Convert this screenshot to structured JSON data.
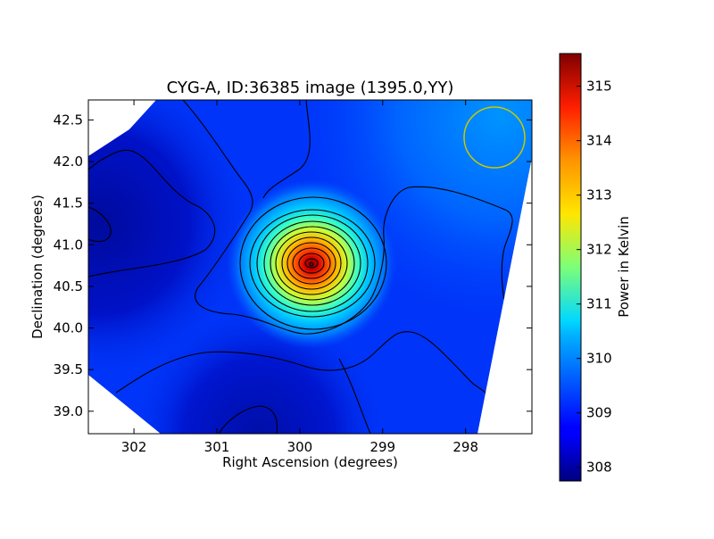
{
  "chart_data": {
    "type": "heatmap",
    "title": "CYG-A, ID:36385 image (1395.0,YY)",
    "xlabel": "Right Ascension (degrees)",
    "ylabel": "Declination (degrees)",
    "x_axis_inverted": true,
    "xlim": [
      302.55,
      297.2
    ],
    "ylim": [
      38.73,
      42.74
    ],
    "x_ticks": [
      302,
      301,
      300,
      299,
      298
    ],
    "x_tick_labels": [
      "302",
      "301",
      "300",
      "299",
      "298"
    ],
    "y_ticks": [
      39.0,
      39.5,
      40.0,
      40.5,
      41.0,
      41.5,
      42.0,
      42.5
    ],
    "y_tick_labels": [
      "39.0",
      "39.5",
      "40.0",
      "40.5",
      "41.0",
      "41.5",
      "42.0",
      "42.5"
    ],
    "colorbar": {
      "label": "Power in Kelvin",
      "colormap": "jet",
      "range": [
        307.75,
        315.6
      ],
      "ticks": [
        308,
        309,
        310,
        311,
        312,
        313,
        314,
        315
      ],
      "tick_labels": [
        "308",
        "309",
        "310",
        "311",
        "312",
        "313",
        "314",
        "315"
      ]
    },
    "peak": {
      "ra": 299.85,
      "dec": 40.77,
      "value": 315.6
    },
    "contours": "black contour lines over a smoothed brightness map",
    "beam_marker": {
      "ra": 297.65,
      "dec": 42.3,
      "color": "#c8c800"
    }
  }
}
